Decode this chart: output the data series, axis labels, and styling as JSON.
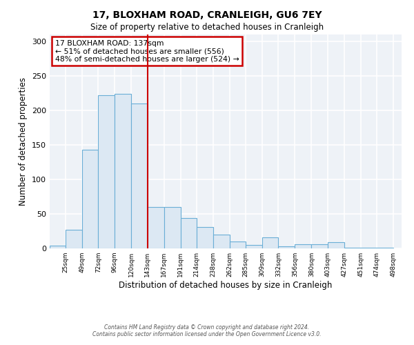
{
  "title": "17, BLOXHAM ROAD, CRANLEIGH, GU6 7EY",
  "subtitle": "Size of property relative to detached houses in Cranleigh",
  "xlabel": "Distribution of detached houses by size in Cranleigh",
  "ylabel": "Number of detached properties",
  "bin_labels": [
    "25sqm",
    "49sqm",
    "72sqm",
    "96sqm",
    "120sqm",
    "143sqm",
    "167sqm",
    "191sqm",
    "214sqm",
    "238sqm",
    "262sqm",
    "285sqm",
    "309sqm",
    "332sqm",
    "356sqm",
    "380sqm",
    "403sqm",
    "427sqm",
    "451sqm",
    "474sqm",
    "498sqm"
  ],
  "bin_edges": [
    25,
    49,
    72,
    96,
    120,
    143,
    167,
    191,
    214,
    238,
    262,
    285,
    309,
    332,
    356,
    380,
    403,
    427,
    451,
    474,
    498
  ],
  "bar_values": [
    4,
    27,
    143,
    222,
    224,
    210,
    60,
    60,
    44,
    31,
    20,
    10,
    5,
    16,
    3,
    6,
    6,
    9,
    1,
    1,
    1
  ],
  "bar_color": "#dce8f3",
  "bar_edge_color": "#6aaed6",
  "property_line_x": 143,
  "property_line_label": "17 BLOXHAM ROAD: 137sqm",
  "annotation_line1": "← 51% of detached houses are smaller (556)",
  "annotation_line2": "48% of semi-detached houses are larger (524) →",
  "annotation_box_color": "#ffffff",
  "annotation_box_edge": "#cc0000",
  "line_color": "#cc0000",
  "ylim": [
    0,
    310
  ],
  "yticks": [
    0,
    50,
    100,
    150,
    200,
    250,
    300
  ],
  "footer1": "Contains HM Land Registry data © Crown copyright and database right 2024.",
  "footer2": "Contains public sector information licensed under the Open Government Licence v3.0.",
  "background_color": "#ffffff",
  "plot_bg_color": "#eef2f7",
  "grid_color": "#ffffff"
}
